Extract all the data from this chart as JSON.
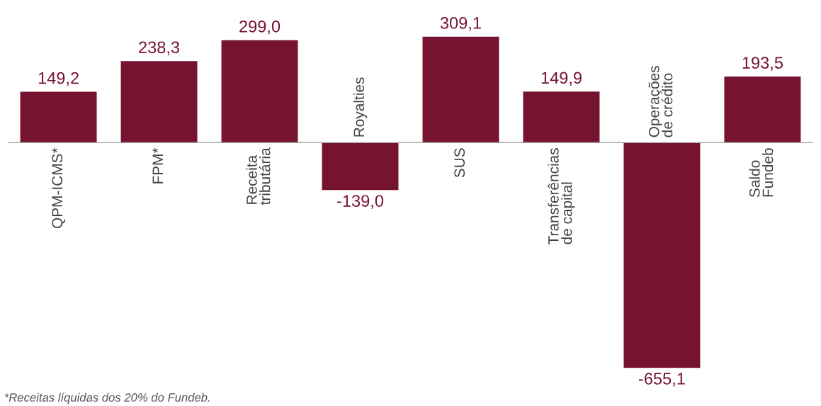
{
  "chart_data": {
    "type": "bar",
    "categories": [
      "QPM-ICMS*",
      "FPM*",
      "Receita\ntributária",
      "Royalties",
      "SUS",
      "Transferências\nde capital",
      "Operações\nde crédito",
      "Saldo\nFundeb"
    ],
    "values": [
      149.2,
      238.3,
      299.0,
      -139.0,
      309.1,
      149.9,
      -655.1,
      193.5
    ],
    "value_labels": [
      "149,2",
      "238,3",
      "299,0",
      "-139,0",
      "309,1",
      "149,9",
      "-655,1",
      "193,5"
    ],
    "color": "#76132f",
    "annotations": [
      "*Receitas líquidas dos 20% do Fundeb."
    ]
  }
}
